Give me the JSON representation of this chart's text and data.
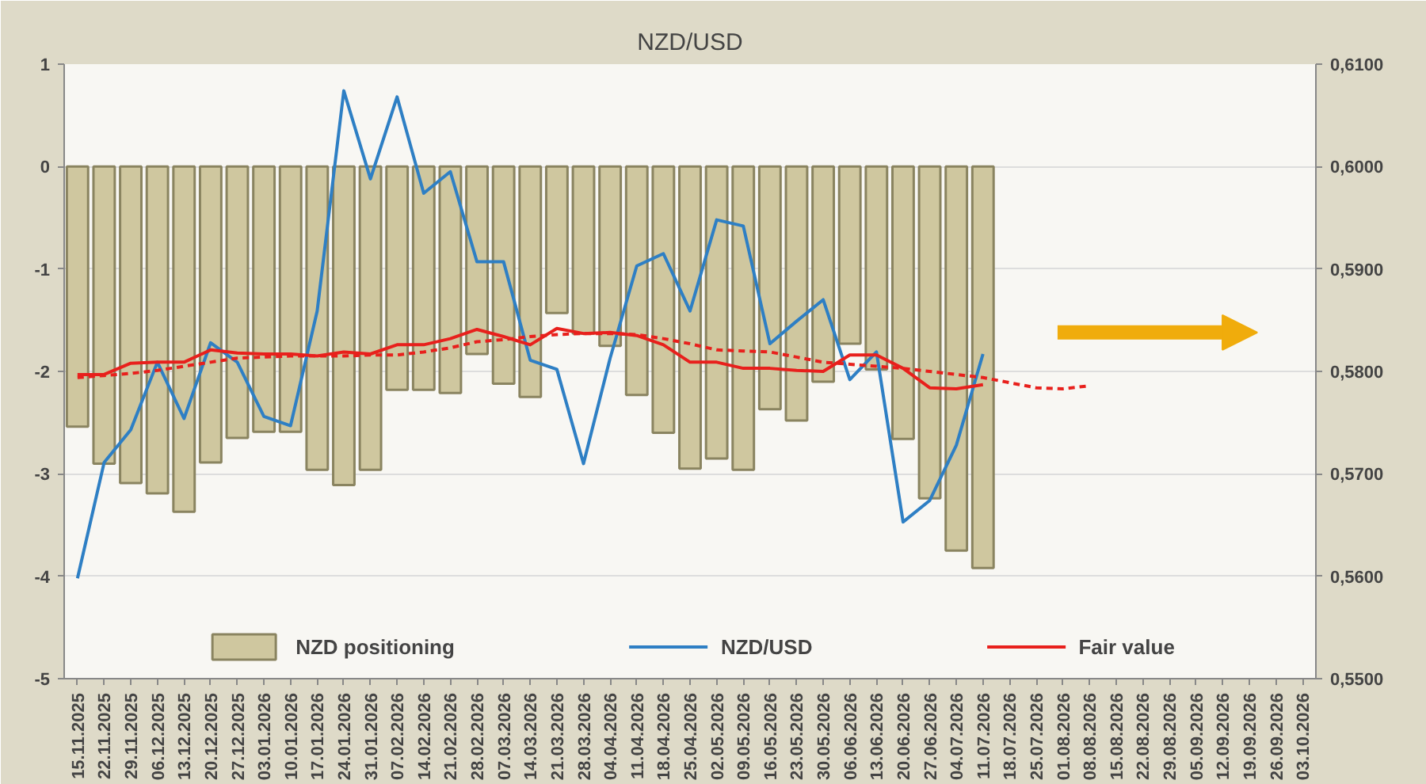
{
  "chart_data": {
    "type": "bar",
    "title": "NZD/USD",
    "categories": [
      "15.11.2025",
      "22.11.2025",
      "29.11.2025",
      "06.12.2025",
      "13.12.2025",
      "20.12.2025",
      "27.12.2025",
      "03.01.2026",
      "10.01.2026",
      "17.01.2026",
      "24.01.2026",
      "31.01.2026",
      "07.02.2026",
      "14.02.2026",
      "21.02.2026",
      "28.02.2026",
      "07.03.2026",
      "14.03.2026",
      "21.03.2026",
      "28.03.2026",
      "04.04.2026",
      "11.04.2026",
      "18.04.2026",
      "25.04.2026",
      "02.05.2026",
      "09.05.2026",
      "16.05.2026",
      "23.05.2026",
      "30.05.2026",
      "06.06.2026",
      "13.06.2026",
      "20.06.2026",
      "27.06.2026",
      "04.07.2026",
      "11.07.2026",
      "18.07.2026",
      "25.07.2026",
      "01.08.2026",
      "08.08.2026",
      "15.08.2026",
      "22.08.2026",
      "29.08.2026",
      "05.09.2026",
      "12.09.2026",
      "19.09.2026",
      "26.09.2026",
      "03.10.2026"
    ],
    "series": [
      {
        "name": "NZD positioning",
        "color": "#cfc79f",
        "values": [
          -2.54,
          -2.9,
          -3.09,
          -3.19,
          -3.37,
          -2.89,
          -2.65,
          -2.59,
          -2.59,
          -2.96,
          -3.11,
          -2.96,
          -2.18,
          -2.18,
          -2.21,
          -1.83,
          -2.12,
          -2.25,
          -1.43,
          -1.63,
          -1.75,
          -2.23,
          -2.6,
          -2.95,
          -2.85,
          -2.96,
          -2.37,
          -2.48,
          -2.1,
          -1.73,
          -1.98,
          -2.66,
          -3.24,
          -3.75,
          -3.92,
          null,
          null,
          null,
          null,
          null,
          null,
          null,
          null,
          null,
          null,
          null,
          null
        ]
      },
      {
        "name": "NZD/USD",
        "type": "line",
        "axis": "y2",
        "color": "#2e7fc4",
        "values": [
          0.5598,
          0.5711,
          0.5743,
          0.5809,
          0.5754,
          0.5828,
          0.5809,
          0.5756,
          0.5747,
          0.5859,
          0.6074,
          0.5988,
          0.6068,
          0.5974,
          0.5995,
          0.5907,
          0.5907,
          0.5811,
          0.5802,
          0.571,
          0.5813,
          0.5903,
          0.5915,
          0.5859,
          0.5948,
          0.5942,
          0.5827,
          0.5849,
          0.587,
          0.5792,
          0.5819,
          0.5653,
          0.5674,
          0.5728,
          0.5817,
          null,
          null,
          null,
          null,
          null,
          null,
          null,
          null,
          null,
          null,
          null,
          null
        ]
      },
      {
        "name": "Fair value",
        "type": "line",
        "axis": "y2",
        "color": "#e8201c",
        "values": [
          0.5797,
          0.5797,
          0.5808,
          0.5809,
          0.5809,
          0.5821,
          0.5818,
          0.5817,
          0.5817,
          0.5815,
          0.5819,
          0.5817,
          0.5826,
          0.5826,
          0.5832,
          0.5841,
          0.5834,
          0.5826,
          0.5842,
          0.5837,
          0.5838,
          0.5835,
          0.5826,
          0.5809,
          0.5809,
          0.5803,
          0.5803,
          0.5801,
          0.58,
          0.5816,
          0.5816,
          0.5803,
          0.5784,
          0.5783,
          0.5787,
          null,
          null,
          null,
          null,
          null,
          null,
          null,
          null,
          null,
          null,
          null,
          null
        ]
      },
      {
        "type": "line",
        "axis": "y2",
        "color": "#e8201c",
        "line_style": "dashed",
        "values": [
          0.5794,
          0.5796,
          0.5798,
          0.5801,
          0.5805,
          0.5809,
          0.5813,
          0.5814,
          0.5815,
          0.5815,
          0.5815,
          0.5816,
          0.5816,
          0.5819,
          0.5823,
          0.5829,
          0.5831,
          0.5834,
          0.5836,
          0.5837,
          0.5837,
          0.5836,
          0.5832,
          0.5827,
          0.5821,
          0.582,
          0.5819,
          0.5814,
          0.5809,
          0.5807,
          0.5805,
          0.5803,
          0.58,
          0.5797,
          0.5794,
          0.5789,
          0.5784,
          0.5783,
          0.5786,
          null,
          null,
          null,
          null,
          null,
          null,
          null,
          null
        ]
      }
    ],
    "ylim": [
      -5,
      1
    ],
    "yticks": [
      -5,
      -4,
      -3,
      -2,
      -1,
      0,
      1
    ],
    "y2lim": [
      0.55,
      0.61
    ],
    "y2ticks": [
      {
        "value": 0.55,
        "label": "0,5500"
      },
      {
        "value": 0.56,
        "label": "0,5600"
      },
      {
        "value": 0.57,
        "label": "0,5700"
      },
      {
        "value": 0.58,
        "label": "0,5800"
      },
      {
        "value": 0.59,
        "label": "0,5900"
      },
      {
        "value": 0.6,
        "label": "0,6000"
      },
      {
        "value": 0.61,
        "label": "0,6100"
      }
    ],
    "grid": "y",
    "legend": "bottom",
    "line_style": "solid",
    "marker": "none"
  }
}
